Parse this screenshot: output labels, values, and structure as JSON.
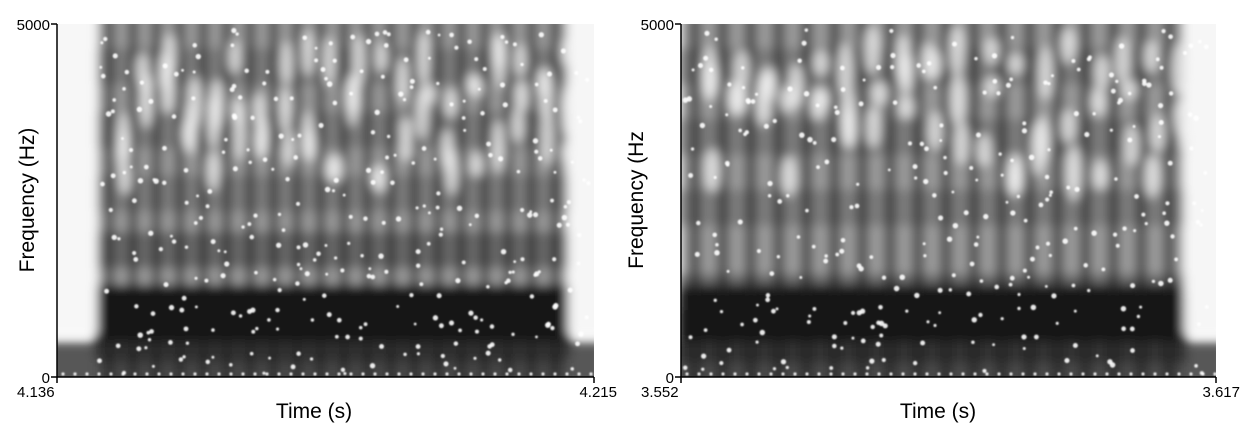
{
  "chart_data": [
    {
      "type": "heatmap",
      "title": "",
      "xlabel": "Time (s)",
      "ylabel": "Frequency (Hz)",
      "xlim": [
        4.136,
        4.215
      ],
      "ylim": [
        0,
        5000
      ],
      "x_ticks": [
        "4.136",
        "4.215"
      ],
      "y_ticks": [
        "0",
        "5000"
      ],
      "colormap": "grayscale (black = high energy, white = low energy)",
      "description_values": {
        "leading_silence_end_s": 4.142,
        "trailing_fade_start_s": 4.211,
        "glottal_pulse_count": 20,
        "formant_bands_hz": [
          800,
          1800,
          2600,
          3500,
          4400
        ]
      }
    },
    {
      "type": "heatmap",
      "title": "",
      "xlabel": "Time (s)",
      "ylabel": "Frequency (Hz",
      "xlim": [
        3.552,
        3.617
      ],
      "ylim": [
        0,
        5000
      ],
      "x_ticks": [
        "3.552",
        "3.617"
      ],
      "y_ticks": [
        "0",
        "5000"
      ],
      "colormap": "grayscale (black = high energy, white = low energy)",
      "description_values": {
        "leading_silence_end_s": 3.552,
        "trailing_fade_start_s": 3.613,
        "glottal_pulse_count": 18,
        "formant_bands_hz": [
          700,
          1200,
          2400,
          3400,
          4400
        ]
      }
    }
  ]
}
